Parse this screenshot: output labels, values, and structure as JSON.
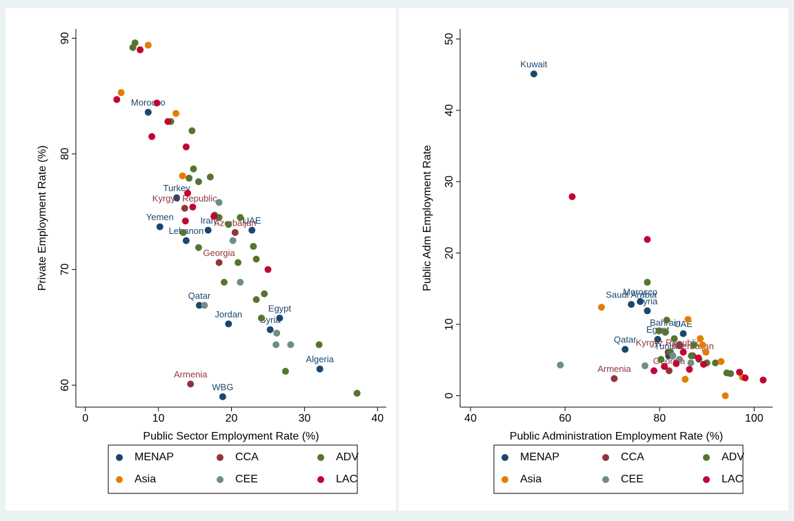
{
  "chart_data": [
    {
      "type": "scatter",
      "x_label": "Public Sector Employment Rate (%)",
      "y_label": "Private Employment Rate (%)",
      "xlim": [
        -1.3,
        41.2
      ],
      "ylim": [
        58.1,
        90.8
      ],
      "xticks": [
        0,
        10,
        20,
        30,
        40
      ],
      "yticks": [
        60,
        70,
        80,
        90
      ],
      "legend_position": "bottom",
      "series": [
        {
          "name": "MENAP",
          "color": "#1a476f",
          "x": [
            8.6,
            12.5,
            10.2,
            13.8,
            16.8,
            22.8,
            15.6,
            19.6,
            26.6,
            25.3,
            32.1,
            18.8
          ],
          "values": [
            83.6,
            76.2,
            73.7,
            72.5,
            73.4,
            73.4,
            66.9,
            65.3,
            65.8,
            64.8,
            61.4,
            59.0
          ],
          "point_labels": [
            "Morocco",
            "Turkey",
            "Yemen",
            "Lebanon",
            "Iran",
            "UAE",
            "Qatar",
            "Jordan",
            "Egypt",
            "Syria",
            "Algeria",
            "WBG"
          ]
        },
        {
          "name": "CCA",
          "color": "#90353b",
          "x": [
            13.6,
            20.5,
            18.3,
            14.4
          ],
          "values": [
            75.3,
            73.2,
            70.6,
            60.1
          ],
          "point_labels": [
            "Kyrgyz Republic",
            "Azerbaijan",
            "Georgia",
            "Armenia"
          ]
        },
        {
          "name": "ADV",
          "color": "#55752f",
          "x": [
            6.8,
            6.5,
            11.7,
            14.6,
            14.8,
            14.2,
            15.5,
            17.1,
            17.7,
            18.3,
            21.2,
            19.6,
            13.4,
            23.0,
            15.5,
            23.4,
            20.9,
            19.0,
            24.5,
            23.4,
            24.1,
            32.0,
            27.4,
            37.2
          ],
          "values": [
            89.6,
            89.2,
            82.8,
            82.0,
            78.7,
            77.9,
            77.6,
            78.0,
            74.7,
            74.5,
            74.5,
            73.9,
            73.2,
            72.0,
            71.9,
            70.9,
            70.6,
            68.9,
            67.9,
            67.4,
            65.8,
            63.5,
            61.2,
            59.3
          ],
          "point_labels": [
            null,
            null,
            null,
            null,
            null,
            null,
            null,
            null,
            null,
            null,
            null,
            null,
            null,
            null,
            null,
            null,
            null,
            null,
            null,
            null,
            null,
            null,
            null,
            null
          ]
        },
        {
          "name": "Asia",
          "color": "#e37e00",
          "x": [
            8.6,
            4.9,
            12.4,
            13.3
          ],
          "values": [
            89.4,
            85.3,
            83.5,
            78.1
          ],
          "point_labels": [
            null,
            null,
            null,
            null
          ]
        },
        {
          "name": "CEE",
          "color": "#6e8e84",
          "x": [
            18.3,
            20.2,
            21.2,
            16.3,
            26.2,
            26.1,
            28.1
          ],
          "values": [
            75.8,
            72.5,
            68.9,
            66.9,
            64.5,
            63.5,
            63.5
          ],
          "point_labels": [
            null,
            null,
            null,
            null,
            null,
            null,
            null
          ]
        },
        {
          "name": "LAC",
          "color": "#c10534",
          "x": [
            7.5,
            4.3,
            9.8,
            11.3,
            9.1,
            13.8,
            14.0,
            14.7,
            17.6,
            13.7,
            25.0
          ],
          "values": [
            89.0,
            84.7,
            84.4,
            82.8,
            81.5,
            80.6,
            76.6,
            75.4,
            74.6,
            74.2,
            70.0
          ],
          "point_labels": [
            null,
            null,
            null,
            null,
            null,
            null,
            null,
            null,
            null,
            null,
            null
          ]
        }
      ]
    },
    {
      "type": "scatter",
      "x_label": "Public Administration Employment Rate (%)",
      "y_label": "Public Adm Employment Rate",
      "xlim": [
        37.8,
        103.9
      ],
      "ylim": [
        -1.6,
        51.4
      ],
      "xticks": [
        40,
        60,
        80,
        100
      ],
      "yticks": [
        0,
        10,
        20,
        30,
        40,
        50
      ],
      "legend_position": "bottom",
      "series": [
        {
          "name": "MENAP",
          "color": "#1a476f",
          "x": [
            53.4,
            75.9,
            74.0,
            77.4,
            85.0,
            79.6,
            81.2,
            72.7,
            81.9
          ],
          "values": [
            45.1,
            13.2,
            12.8,
            11.9,
            8.7,
            7.9,
            8.9,
            6.5,
            5.6
          ],
          "point_labels": [
            "Kuwait",
            "Morocco",
            "Saudi Arabia",
            "Syria",
            "UAE",
            "Egypt",
            "Bahrain",
            "Qatar",
            "Tunisia"
          ]
        },
        {
          "name": "CCA",
          "color": "#90353b",
          "x": [
            70.4,
            87.0,
            81.8,
            82.0,
            84.2
          ],
          "values": [
            2.4,
            5.6,
            6.1,
            3.5,
            7.1
          ],
          "point_labels": [
            "Armenia",
            "Azerbaijan",
            "Kyrgyz Republic",
            "Georgia",
            null
          ]
        },
        {
          "name": "ADV",
          "color": "#55752f",
          "x": [
            77.4,
            81.5,
            79.9,
            81.2,
            83.1,
            82.3,
            86.7,
            87.2,
            90.0,
            91.8,
            95.0,
            94.2,
            88.3,
            80.3
          ],
          "values": [
            15.9,
            10.6,
            9.1,
            8.9,
            8.0,
            6.1,
            5.6,
            7.1,
            4.6,
            4.6,
            3.1,
            3.2,
            5.1,
            5.1
          ],
          "point_labels": [
            null,
            null,
            null,
            null,
            null,
            null,
            null,
            null,
            null,
            null,
            null,
            null,
            null,
            null
          ]
        },
        {
          "name": "Asia",
          "color": "#e37e00",
          "x": [
            67.7,
            86.0,
            88.6,
            89.1,
            93.0,
            97.5,
            85.4,
            93.9,
            89.8
          ],
          "values": [
            12.4,
            10.7,
            8.0,
            7.1,
            4.8,
            2.6,
            2.3,
            0.0,
            6.1
          ],
          "point_labels": [
            null,
            null,
            null,
            null,
            null,
            null,
            null,
            null,
            null
          ]
        },
        {
          "name": "CEE",
          "color": "#6e8e84",
          "x": [
            59.0,
            76.9,
            82.8,
            86.6,
            84.2
          ],
          "values": [
            4.3,
            4.2,
            5.6,
            4.6,
            5.1
          ],
          "point_labels": [
            null,
            null,
            null,
            null,
            null
          ]
        },
        {
          "name": "LAC",
          "color": "#c10534",
          "x": [
            61.5,
            77.4,
            78.8,
            81.0,
            83.5,
            86.3,
            89.3,
            88.2,
            96.9,
            98.1,
            101.9,
            85.0
          ],
          "values": [
            27.9,
            21.9,
            3.5,
            4.1,
            4.5,
            3.7,
            4.4,
            5.3,
            3.3,
            2.5,
            2.2,
            6.1
          ],
          "point_labels": [
            null,
            null,
            null,
            null,
            null,
            null,
            null,
            null,
            null,
            null,
            null,
            null
          ]
        }
      ]
    }
  ]
}
